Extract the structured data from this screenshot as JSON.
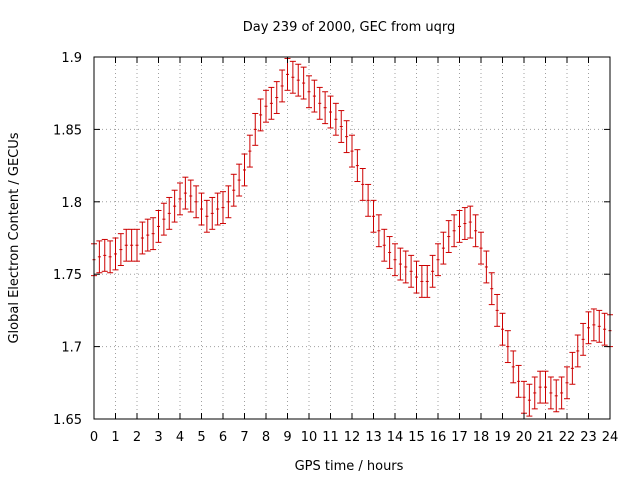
{
  "chart_data": {
    "type": "scatter",
    "title": "Day 239 of 2000, GEC from uqrg",
    "xlabel": "GPS time / hours",
    "ylabel": "Global Electron Content / GECUs",
    "xlim": [
      0,
      24
    ],
    "ylim": [
      1.65,
      1.9
    ],
    "x_ticks": [
      "0",
      "1",
      "2",
      "3",
      "4",
      "5",
      "6",
      "7",
      "8",
      "9",
      "10",
      "11",
      "12",
      "13",
      "14",
      "15",
      "16",
      "17",
      "18",
      "19",
      "20",
      "21",
      "22",
      "23",
      "24"
    ],
    "y_ticks": [
      "1.65",
      "1.7",
      "1.75",
      "1.8",
      "1.85",
      "1.9"
    ],
    "grid": true,
    "error_bar": 0.011,
    "colors": {
      "series": "#cc0000",
      "grid": "#a0a0a0",
      "axis": "#000000"
    },
    "series": [
      {
        "name": "GEC",
        "x": [
          0,
          0.25,
          0.5,
          0.75,
          1,
          1.25,
          1.5,
          1.75,
          2,
          2.25,
          2.5,
          2.75,
          3,
          3.25,
          3.5,
          3.75,
          4,
          4.25,
          4.5,
          4.75,
          5,
          5.25,
          5.5,
          5.75,
          6,
          6.25,
          6.5,
          6.75,
          7,
          7.25,
          7.5,
          7.75,
          8,
          8.25,
          8.5,
          8.75,
          9,
          9.25,
          9.5,
          9.75,
          10,
          10.25,
          10.5,
          10.75,
          11,
          11.25,
          11.5,
          11.75,
          12,
          12.25,
          12.5,
          12.75,
          13,
          13.25,
          13.5,
          13.75,
          14,
          14.25,
          14.5,
          14.75,
          15,
          15.25,
          15.5,
          15.75,
          16,
          16.25,
          16.5,
          16.75,
          17,
          17.25,
          17.5,
          17.75,
          18,
          18.25,
          18.5,
          18.75,
          19,
          19.25,
          19.5,
          19.75,
          20,
          20.25,
          20.5,
          20.75,
          21,
          21.25,
          21.5,
          21.75,
          22,
          22.25,
          22.5,
          22.75,
          23,
          23.25,
          23.5,
          23.75,
          24
        ],
        "values": [
          1.76,
          1.762,
          1.763,
          1.762,
          1.764,
          1.767,
          1.77,
          1.77,
          1.77,
          1.775,
          1.777,
          1.778,
          1.783,
          1.788,
          1.792,
          1.797,
          1.802,
          1.806,
          1.804,
          1.8,
          1.795,
          1.79,
          1.792,
          1.795,
          1.796,
          1.8,
          1.808,
          1.815,
          1.822,
          1.835,
          1.85,
          1.86,
          1.866,
          1.868,
          1.872,
          1.88,
          1.888,
          1.886,
          1.884,
          1.882,
          1.876,
          1.873,
          1.868,
          1.865,
          1.862,
          1.857,
          1.852,
          1.845,
          1.835,
          1.825,
          1.812,
          1.801,
          1.79,
          1.78,
          1.77,
          1.765,
          1.76,
          1.757,
          1.755,
          1.752,
          1.748,
          1.745,
          1.745,
          1.752,
          1.76,
          1.768,
          1.776,
          1.78,
          1.783,
          1.785,
          1.786,
          1.78,
          1.768,
          1.755,
          1.74,
          1.725,
          1.712,
          1.7,
          1.686,
          1.676,
          1.665,
          1.663,
          1.668,
          1.672,
          1.672,
          1.668,
          1.666,
          1.668,
          1.675,
          1.685,
          1.697,
          1.705,
          1.713,
          1.715,
          1.714,
          1.712,
          1.711
        ]
      }
    ]
  }
}
